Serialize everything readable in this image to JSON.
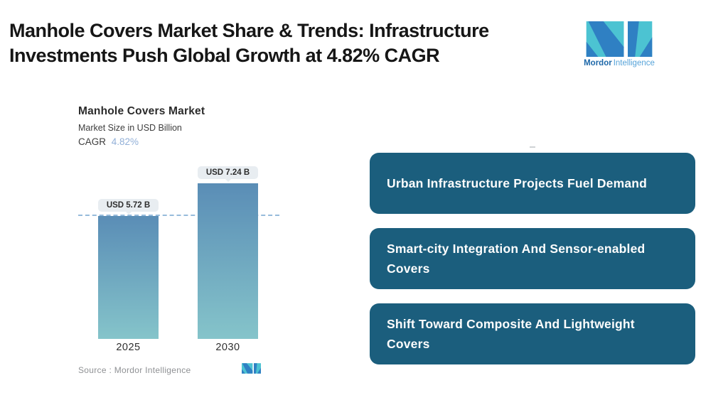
{
  "theme": {
    "brand_teal": "#4cc3d2",
    "brand_blue": "#2f80c3",
    "box_bg": "#1b5e7d",
    "bar_top": "#5a8db6",
    "bar_bottom": "#85c4ca",
    "dash_color": "#96bbdb",
    "cagr_accent": "#92b0d8",
    "pill_bg": "#e8edf1"
  },
  "header": {
    "title_line1": "Manhole Covers Market Share & Trends: Infrastructure",
    "title_line2": "Investments Push Global Growth at 4.82% CAGR"
  },
  "brand": {
    "name_bold": "Mordor",
    "name_light": "Intelligence"
  },
  "chart": {
    "title": "Manhole Covers Market",
    "subtitle": "Market Size in USD Billion",
    "cagr_label": "CAGR",
    "cagr_value": "4.82%",
    "source_text": "Source :  Mordor Intelligence"
  },
  "chart_data": {
    "type": "bar",
    "title": "Manhole Covers Market",
    "ylabel": "Market Size in USD Billion",
    "cagr": "4.82%",
    "categories": [
      "2025",
      "2030"
    ],
    "values": [
      5.72,
      7.24
    ],
    "value_labels": [
      "USD 5.72 B",
      "USD 7.24 B"
    ],
    "ylim": [
      0,
      7.24
    ],
    "gridline_at": 5.72,
    "grid": "single dashed reference line at 2025 value",
    "legend": "none",
    "source": "Mordor Intelligence"
  },
  "highlights": {
    "items": [
      {
        "label": "Urban Infrastructure Projects Fuel Demand"
      },
      {
        "label": "Smart-city Integration And Sensor-enabled Covers"
      },
      {
        "label": "Shift Toward Composite And Lightweight Covers"
      }
    ]
  }
}
